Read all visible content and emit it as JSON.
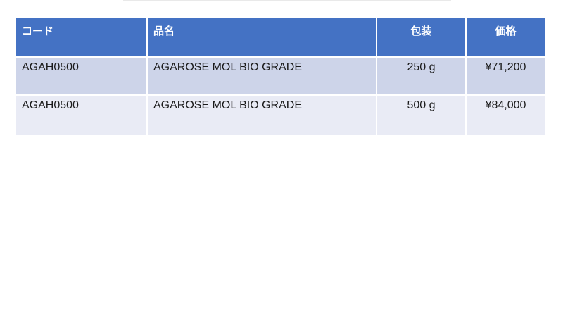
{
  "page": {
    "background": "#ffffff"
  },
  "table": {
    "columns": [
      {
        "key": "code",
        "label": "コード",
        "align": "left"
      },
      {
        "key": "name",
        "label": "品名",
        "align": "left"
      },
      {
        "key": "pack",
        "label": "包装",
        "align": "center"
      },
      {
        "key": "price",
        "label": "価格",
        "align": "center"
      }
    ],
    "rows": [
      {
        "code": "AGAH0500",
        "name": "AGAROSE MOL BIO GRADE",
        "pack": "250 g",
        "price": "¥71,200"
      },
      {
        "code": "AGAH0500",
        "name": "AGAROSE MOL BIO GRADE",
        "pack": "500 g",
        "price": "¥84,000"
      }
    ],
    "colors": {
      "header_bg": "#4472C4",
      "header_text": "#ffffff",
      "row_odd_bg": "#CDD4E9",
      "row_even_bg": "#E9EBF5",
      "body_text": "#1a1a1a",
      "separator": "#ffffff"
    }
  }
}
